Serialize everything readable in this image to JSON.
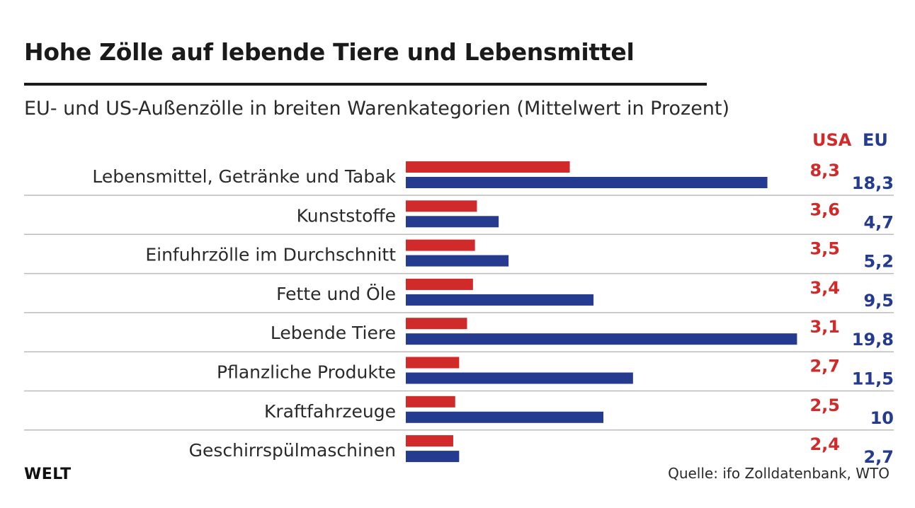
{
  "header": {
    "title": "Hohe Zölle auf lebende Tiere und Lebensmittel",
    "subtitle": "EU- und US-Außenzölle in breiten Warenkategorien (Mittelwert in Prozent)"
  },
  "legend": {
    "usa": "USA",
    "eu": "EU"
  },
  "footer": {
    "source": "Quelle: ifo Zolldatenbank, WTO",
    "logo": "WELT"
  },
  "colors": {
    "usa": "#d02a2a",
    "eu": "#243b8f",
    "separator": "#bbbbbb"
  },
  "chart_data": {
    "type": "bar",
    "orientation": "horizontal",
    "categories": [
      "Lebensmittel, Getränke und Tabak",
      "Kunststoffe",
      "Einfuhrzölle im Durchschnitt",
      "Fette und Öle",
      "Lebende Tiere",
      "Pflanzliche Produkte",
      "Kraftfahrzeuge",
      "Geschirrspülmaschinen"
    ],
    "series": [
      {
        "name": "USA",
        "values": [
          8.3,
          3.6,
          3.5,
          3.4,
          3.1,
          2.7,
          2.5,
          2.4
        ],
        "labels": [
          "8,3",
          "3,6",
          "3,5",
          "3,4",
          "3,1",
          "2,7",
          "2,5",
          "2,4"
        ]
      },
      {
        "name": "EU",
        "values": [
          18.3,
          4.7,
          5.2,
          9.5,
          19.8,
          11.5,
          10,
          2.7
        ],
        "labels": [
          "18,3",
          "4,7",
          "5,2",
          "9,5",
          "19,8",
          "11,5",
          "10",
          "2,7"
        ]
      }
    ],
    "title": "Hohe Zölle auf lebende Tiere und Lebensmittel",
    "subtitle": "EU- und US-Außenzölle in breiten Warenkategorien (Mittelwert in Prozent)",
    "xlim": [
      0,
      20
    ],
    "grid": false,
    "legend": "top-right"
  }
}
